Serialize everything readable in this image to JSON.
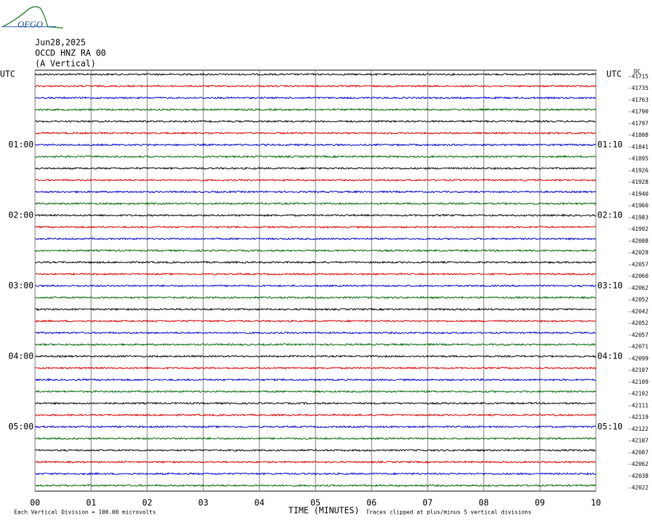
{
  "header": {
    "logo": "OFGO",
    "date": "Jun28,2025",
    "station": "OCCD HNZ RA 00",
    "component": "(A Vertical)"
  },
  "chart_data": {
    "type": "helicorder",
    "colors": [
      "#000000",
      "#e00000",
      "#0000d0",
      "#006400"
    ],
    "xlim": [
      0,
      10
    ],
    "xticks": [
      {
        "value": 0,
        "label": "00"
      },
      {
        "value": 1,
        "label": "01"
      },
      {
        "value": 2,
        "label": "02"
      },
      {
        "value": 3,
        "label": "03"
      },
      {
        "value": 4,
        "label": "04"
      },
      {
        "value": 5,
        "label": "05"
      },
      {
        "value": 6,
        "label": "06"
      },
      {
        "value": 7,
        "label": "07"
      },
      {
        "value": 8,
        "label": "08"
      },
      {
        "value": 9,
        "label": "09"
      },
      {
        "value": 10,
        "label": "10"
      }
    ],
    "x_label": "TIME (MINUTES)",
    "dc_title": "DC",
    "left_labels": [
      "UTC",
      null,
      null,
      null,
      null,
      null,
      "01:00",
      null,
      null,
      null,
      null,
      null,
      "02:00",
      null,
      null,
      null,
      null,
      null,
      "03:00",
      null,
      null,
      null,
      null,
      null,
      "04:00",
      null,
      null,
      null,
      null,
      null,
      "05:00",
      null,
      null,
      null,
      null,
      null
    ],
    "right_labels": [
      "UTC",
      null,
      null,
      null,
      null,
      null,
      "01:10",
      null,
      null,
      null,
      null,
      null,
      "02:10",
      null,
      null,
      null,
      null,
      null,
      "03:10",
      null,
      null,
      null,
      null,
      null,
      "04:10",
      null,
      null,
      null,
      null,
      null,
      "05:10",
      null,
      null,
      null,
      null,
      null
    ],
    "dc_offsets": [
      -41715,
      -41735,
      -41763,
      -41790,
      -41797,
      -41808,
      -41841,
      -41895,
      -41926,
      -41928,
      -41940,
      -41960,
      -41983,
      -41992,
      -42008,
      -42028,
      -42057,
      -42060,
      -42062,
      -42052,
      -42042,
      -42052,
      -42057,
      -42071,
      -42099,
      -42107,
      -42109,
      -42102,
      -42111,
      -42119,
      -42122,
      -42107,
      -42087,
      -42062,
      -42038,
      -42022
    ],
    "notes": [
      "Each Vertical Division =  100.00 microvolts",
      "Traces clipped at plus/minus 5 vertical divisions"
    ]
  }
}
